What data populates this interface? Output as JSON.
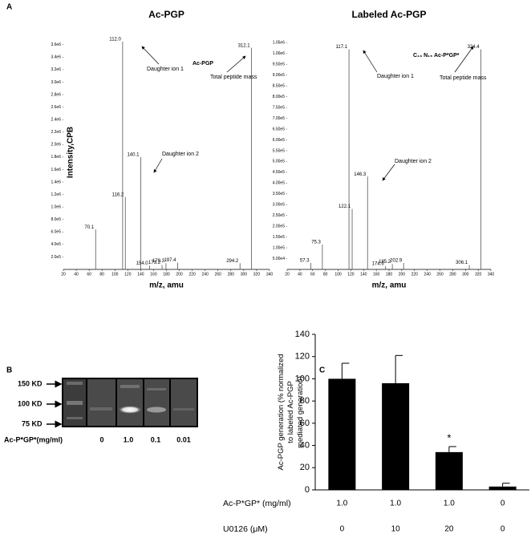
{
  "panel_labels": [
    "A",
    "B",
    "C"
  ],
  "chart_data": [
    {
      "type": "spectrum",
      "title": "Ac-PGP",
      "x_label": "m/z, amu",
      "y_label": "Intensity,CPB",
      "x": [
        70.1,
        112.0,
        116.2,
        140.1,
        154.0,
        173.2,
        179.3,
        197.4,
        294.2,
        312.1
      ],
      "x_labels": [
        "70.1",
        "112.0",
        "116.2",
        "140.1",
        "154.0",
        "173.2",
        "179.3",
        "197.4",
        "294.2",
        "312.1"
      ],
      "values": [
        640000,
        3650000,
        1160000,
        1800000,
        60000,
        70000,
        100000,
        110000,
        100000,
        3550000
      ],
      "color": "#555555",
      "xlim": [
        20,
        340
      ],
      "xticks": [
        20,
        40,
        60,
        80,
        100,
        120,
        140,
        160,
        180,
        200,
        220,
        240,
        260,
        280,
        300,
        320,
        340
      ],
      "ylim": [
        0,
        3700000
      ],
      "yticks": [
        {
          "value": 200000,
          "label": "2.0e5"
        },
        {
          "value": 400000,
          "label": "4.0e5"
        },
        {
          "value": 600000,
          "label": "6.0e5"
        },
        {
          "value": 800000,
          "label": "8.0e5"
        },
        {
          "value": 1000000,
          "label": "1.0e6"
        },
        {
          "value": 1200000,
          "label": "1.2e6"
        },
        {
          "value": 1400000,
          "label": "1.4e6"
        },
        {
          "value": 1600000,
          "label": "1.6e6"
        },
        {
          "value": 1800000,
          "label": "1.8e6"
        },
        {
          "value": 2000000,
          "label": "2.0e6"
        },
        {
          "value": 2200000,
          "label": "2.2e6"
        },
        {
          "value": 2400000,
          "label": "2.4e6"
        },
        {
          "value": 2600000,
          "label": "2.6e6"
        },
        {
          "value": 2800000,
          "label": "2.8e6"
        },
        {
          "value": 3000000,
          "label": "3.0e6"
        },
        {
          "value": 3200000,
          "label": "3.2e6"
        },
        {
          "value": 3400000,
          "label": "3.4e6"
        },
        {
          "value": 3600000,
          "label": "3.6e6"
        }
      ],
      "annotations": [
        "Daughter ion 1",
        "Daughter ion 2",
        "Total peptide mass",
        "Ac-PGP"
      ]
    },
    {
      "type": "spectrum",
      "title": "Labeled Ac-PGP",
      "x_label": "m/z, amu",
      "x": [
        57.3,
        75.3,
        117.1,
        122.1,
        146.3,
        174.6,
        185.2,
        202.9,
        306.1,
        324.4
      ],
      "x_labels": [
        "57.3",
        "75.3",
        "117.1",
        "122.1",
        "146.3",
        "174.6",
        "185.2",
        "202.9",
        "306.1",
        "324.4"
      ],
      "values": [
        30000,
        115000,
        1020000,
        280000,
        430000,
        15000,
        25000,
        30000,
        20000,
        1020000
      ],
      "color": "#555555",
      "xlim": [
        20,
        340
      ],
      "xticks": [
        20,
        40,
        60,
        80,
        100,
        120,
        140,
        160,
        180,
        200,
        220,
        240,
        260,
        280,
        300,
        320,
        340
      ],
      "ylim": [
        0,
        1070000
      ],
      "yticks": [
        {
          "value": 50000,
          "label": "5.00e4"
        },
        {
          "value": 100000,
          "label": "1.00e5"
        },
        {
          "value": 150000,
          "label": "1.50e5"
        },
        {
          "value": 200000,
          "label": "2.00e5"
        },
        {
          "value": 250000,
          "label": "2.50e5"
        },
        {
          "value": 300000,
          "label": "3.00e5"
        },
        {
          "value": 350000,
          "label": "3.50e5"
        },
        {
          "value": 400000,
          "label": "4.00e5"
        },
        {
          "value": 450000,
          "label": "4.50e5"
        },
        {
          "value": 500000,
          "label": "5.00e5"
        },
        {
          "value": 550000,
          "label": "5.50e5"
        },
        {
          "value": 600000,
          "label": "6.00e5"
        },
        {
          "value": 650000,
          "label": "6.50e5"
        },
        {
          "value": 700000,
          "label": "7.00e5"
        },
        {
          "value": 750000,
          "label": "7.50e5"
        },
        {
          "value": 800000,
          "label": "8.00e5"
        },
        {
          "value": 850000,
          "label": "8.50e5"
        },
        {
          "value": 900000,
          "label": "9.00e5"
        },
        {
          "value": 950000,
          "label": "9.50e5"
        },
        {
          "value": 1000000,
          "label": "1.00e6"
        },
        {
          "value": 1050000,
          "label": "1.05e6"
        }
      ],
      "annotations": [
        "Daughter ion 1",
        "Daughter ion 2",
        "Total peptide mass",
        "C₁₃ N₁₅ Ac-P*GP*"
      ]
    },
    {
      "type": "bar",
      "y_label": "Ac-PGP generation (% normalized to labeled Ac-PGP mediated generation)",
      "values": [
        100,
        96,
        34,
        3
      ],
      "errors": [
        14,
        25,
        5,
        3
      ],
      "color": "#000000",
      "ylim": [
        0,
        140
      ],
      "yticks": [
        0,
        20,
        40,
        60,
        80,
        100,
        120,
        140
      ],
      "annotation": "*",
      "rows": [
        {
          "label": "Ac-P*GP* (mg/ml)",
          "values": [
            "1.0",
            "1.0",
            "1.0",
            "0"
          ]
        },
        {
          "label": "U0126 (μM)",
          "values": [
            "0",
            "10",
            "20",
            "0"
          ]
        }
      ]
    }
  ],
  "gel": {
    "markers": [
      "150 KD",
      "100 KD",
      "75 KD"
    ],
    "row_label": "Ac-P*GP*(mg/ml)",
    "lanes": [
      "0",
      "1.0",
      "0.1",
      "0.01"
    ]
  }
}
